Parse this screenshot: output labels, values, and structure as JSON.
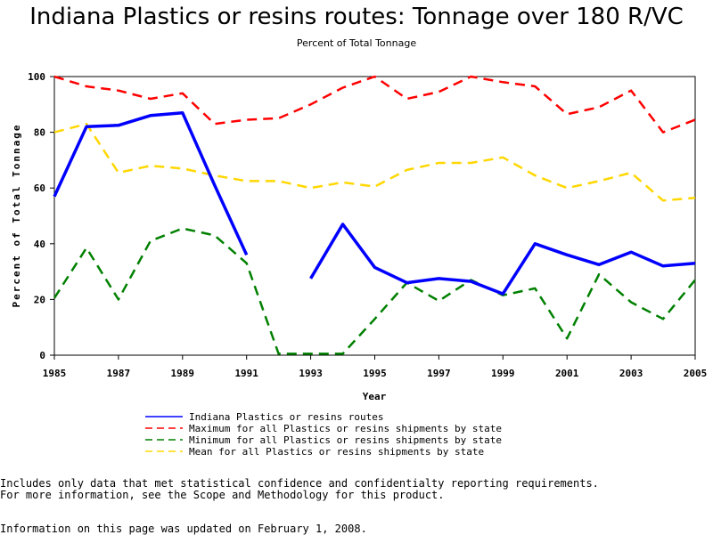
{
  "chart_data": {
    "type": "line",
    "title": "Indiana Plastics or resins routes: Tonnage over 180 R/VC",
    "subtitle": "Percent of Total Tonnage",
    "xlabel": "Year",
    "ylabel": "Percent of Total Tonnage",
    "xlim": [
      1985,
      2005
    ],
    "ylim": [
      0,
      100
    ],
    "x_ticks": [
      "1985",
      "1987",
      "1989",
      "1991",
      "1993",
      "1995",
      "1997",
      "1999",
      "2001",
      "2003",
      "2005"
    ],
    "y_ticks": [
      "0",
      "20",
      "40",
      "60",
      "80",
      "100"
    ],
    "grid": false,
    "x": [
      1985,
      1986,
      1987,
      1988,
      1989,
      1990,
      1991,
      1992,
      1993,
      1994,
      1995,
      1996,
      1997,
      1998,
      1999,
      2000,
      2001,
      2002,
      2003,
      2004,
      2005
    ],
    "series": [
      {
        "name": "Indiana Plastics or resins routes",
        "color": "#0000ff",
        "style": "solid",
        "values": [
          57,
          82,
          82.5,
          86,
          87,
          61,
          36,
          null,
          27.5,
          47,
          31.5,
          26,
          27.5,
          26.5,
          22,
          40,
          36,
          32.5,
          37,
          32,
          33
        ]
      },
      {
        "name": "Maximum for all Plastics or resins shipments by state",
        "color": "#ff0000",
        "style": "dashed",
        "values": [
          100,
          96.5,
          95,
          92,
          94,
          83,
          84.5,
          85,
          90,
          96,
          100,
          92,
          94.5,
          100,
          98,
          96.5,
          86.5,
          89,
          95,
          80,
          84.5
        ]
      },
      {
        "name": "Minimum for all Plastics or resins shipments by state",
        "color": "#008000",
        "style": "dashed",
        "values": [
          20.5,
          38.5,
          20,
          41,
          45.5,
          43,
          33,
          0.5,
          0.5,
          0.5,
          13,
          26,
          19.5,
          27,
          21.5,
          24,
          6,
          29,
          19,
          13,
          27
        ]
      },
      {
        "name": "Mean for all Plastics or resins shipments by state",
        "color": "#ffd700",
        "style": "dashed",
        "values": [
          80,
          83,
          65.5,
          68,
          67,
          64.5,
          62.5,
          62.5,
          60,
          62,
          60.5,
          66.5,
          69,
          69,
          71,
          64.5,
          60,
          62.5,
          65.5,
          55.5,
          56.5
        ]
      }
    ]
  },
  "footnotes": {
    "line1": "Includes only data that met statistical confidence and confidentialty reporting requirements.",
    "line2": "For more information, see the Scope and Methodology for this product.",
    "line3": "Information on this page was updated on February 1, 2008."
  }
}
